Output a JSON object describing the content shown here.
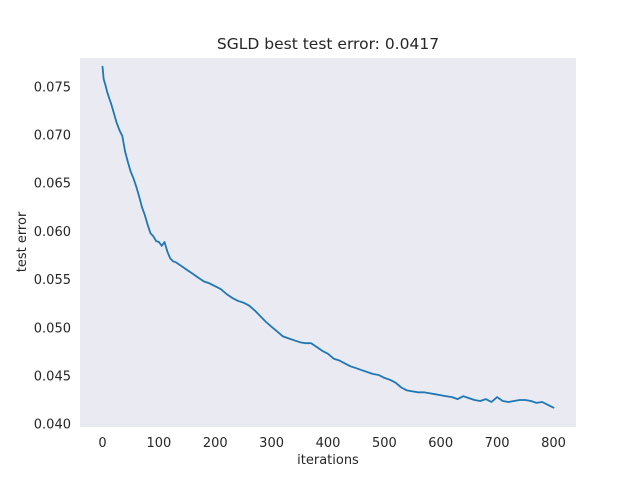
{
  "chart_data": {
    "type": "line",
    "title": "SGLD best test error: 0.0417",
    "xlabel": "iterations",
    "ylabel": "test error",
    "xlim": [
      -40,
      840
    ],
    "ylim": [
      0.0397,
      0.078
    ],
    "xticks": [
      0,
      100,
      200,
      300,
      400,
      500,
      600,
      700,
      800
    ],
    "xtick_labels": [
      "0",
      "100",
      "200",
      "300",
      "400",
      "500",
      "600",
      "700",
      "800"
    ],
    "yticks": [
      0.04,
      0.045,
      0.05,
      0.055,
      0.06,
      0.065,
      0.07,
      0.075
    ],
    "ytick_labels": [
      "0.040",
      "0.045",
      "0.050",
      "0.055",
      "0.060",
      "0.065",
      "0.070",
      "0.075"
    ],
    "grid": false,
    "legend": "none",
    "style": {
      "plot_background": "#eaeaf2",
      "line_color": "#1f77b4",
      "text_color": "#262626"
    },
    "series": [
      {
        "x": [
          0,
          2,
          5,
          8,
          12,
          15,
          20,
          25,
          30,
          35,
          40,
          45,
          50,
          55,
          60,
          65,
          70,
          75,
          80,
          85,
          90,
          95,
          100,
          105,
          110,
          115,
          120,
          125,
          130,
          140,
          150,
          160,
          170,
          180,
          190,
          200,
          210,
          220,
          230,
          240,
          250,
          260,
          270,
          280,
          290,
          300,
          310,
          320,
          330,
          340,
          350,
          360,
          370,
          380,
          390,
          400,
          410,
          420,
          430,
          440,
          450,
          460,
          470,
          480,
          490,
          500,
          510,
          520,
          530,
          540,
          550,
          560,
          570,
          580,
          590,
          600,
          610,
          620,
          630,
          640,
          650,
          660,
          670,
          680,
          690,
          700,
          710,
          720,
          730,
          740,
          750,
          760,
          770,
          780,
          790,
          800
        ],
        "y": [
          0.0771,
          0.0758,
          0.0752,
          0.0745,
          0.0738,
          0.0733,
          0.0723,
          0.0713,
          0.0705,
          0.0699,
          0.0683,
          0.0672,
          0.0662,
          0.0655,
          0.0646,
          0.0636,
          0.0625,
          0.0617,
          0.0607,
          0.0598,
          0.0595,
          0.059,
          0.0589,
          0.0585,
          0.0589,
          0.0579,
          0.0572,
          0.0569,
          0.0568,
          0.0564,
          0.056,
          0.0556,
          0.0552,
          0.0548,
          0.0546,
          0.0543,
          0.054,
          0.0535,
          0.0531,
          0.0528,
          0.0526,
          0.0523,
          0.0518,
          0.0512,
          0.0506,
          0.0501,
          0.0496,
          0.0491,
          0.0489,
          0.0487,
          0.0485,
          0.0484,
          0.0484,
          0.048,
          0.0476,
          0.0473,
          0.0468,
          0.0466,
          0.0463,
          0.046,
          0.0458,
          0.0456,
          0.0454,
          0.0452,
          0.0451,
          0.0448,
          0.0446,
          0.0443,
          0.0438,
          0.0435,
          0.0434,
          0.0433,
          0.0433,
          0.0432,
          0.0431,
          0.043,
          0.0429,
          0.0428,
          0.0426,
          0.0429,
          0.0427,
          0.0425,
          0.0424,
          0.0426,
          0.0423,
          0.0428,
          0.0424,
          0.0423,
          0.0424,
          0.0425,
          0.0425,
          0.0424,
          0.0422,
          0.0423,
          0.042,
          0.0417
        ]
      }
    ]
  }
}
